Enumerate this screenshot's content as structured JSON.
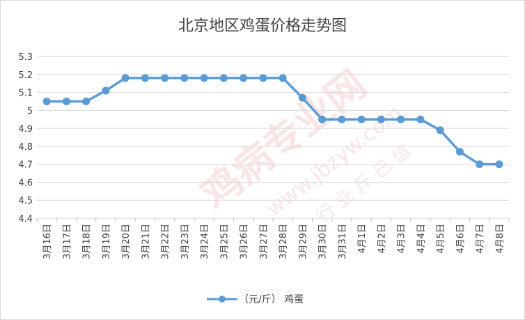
{
  "chart_data": {
    "type": "line",
    "title": "北京地区鸡蛋价格走势图",
    "categories": [
      "3月16日",
      "3月17日",
      "3月18日",
      "3月19日",
      "3月20日",
      "3月21日",
      "3月22日",
      "3月23日",
      "3月24日",
      "3月25日",
      "3月26日",
      "3月27日",
      "3月28日",
      "3月29日",
      "3月30日",
      "3月31日",
      "4月1日",
      "4月2日",
      "4月3日",
      "4月4日",
      "4月5日",
      "4月6日",
      "4月7日",
      "4月8日"
    ],
    "series": [
      {
        "name": "（元/斤） 鸡蛋",
        "color": "#5b9bd5",
        "values": [
          5.05,
          5.05,
          5.05,
          5.11,
          5.18,
          5.18,
          5.18,
          5.18,
          5.18,
          5.18,
          5.18,
          5.18,
          5.18,
          5.07,
          4.95,
          4.95,
          4.95,
          4.95,
          4.95,
          4.95,
          4.89,
          4.77,
          4.7,
          4.7
        ]
      }
    ],
    "ylim": [
      4.4,
      5.3
    ],
    "yticks": [
      "4.4",
      "4.5",
      "4.6",
      "4.7",
      "4.8",
      "4.9",
      "5",
      "5.1",
      "5.2",
      "5.3"
    ],
    "xlabel": "",
    "ylabel": "",
    "grid": true,
    "legend": "bottom",
    "watermark": {
      "line1": "鸡病专业网",
      "line2": "www.jbzyw.com",
      "line3": "行 业 斤 已 信"
    }
  }
}
